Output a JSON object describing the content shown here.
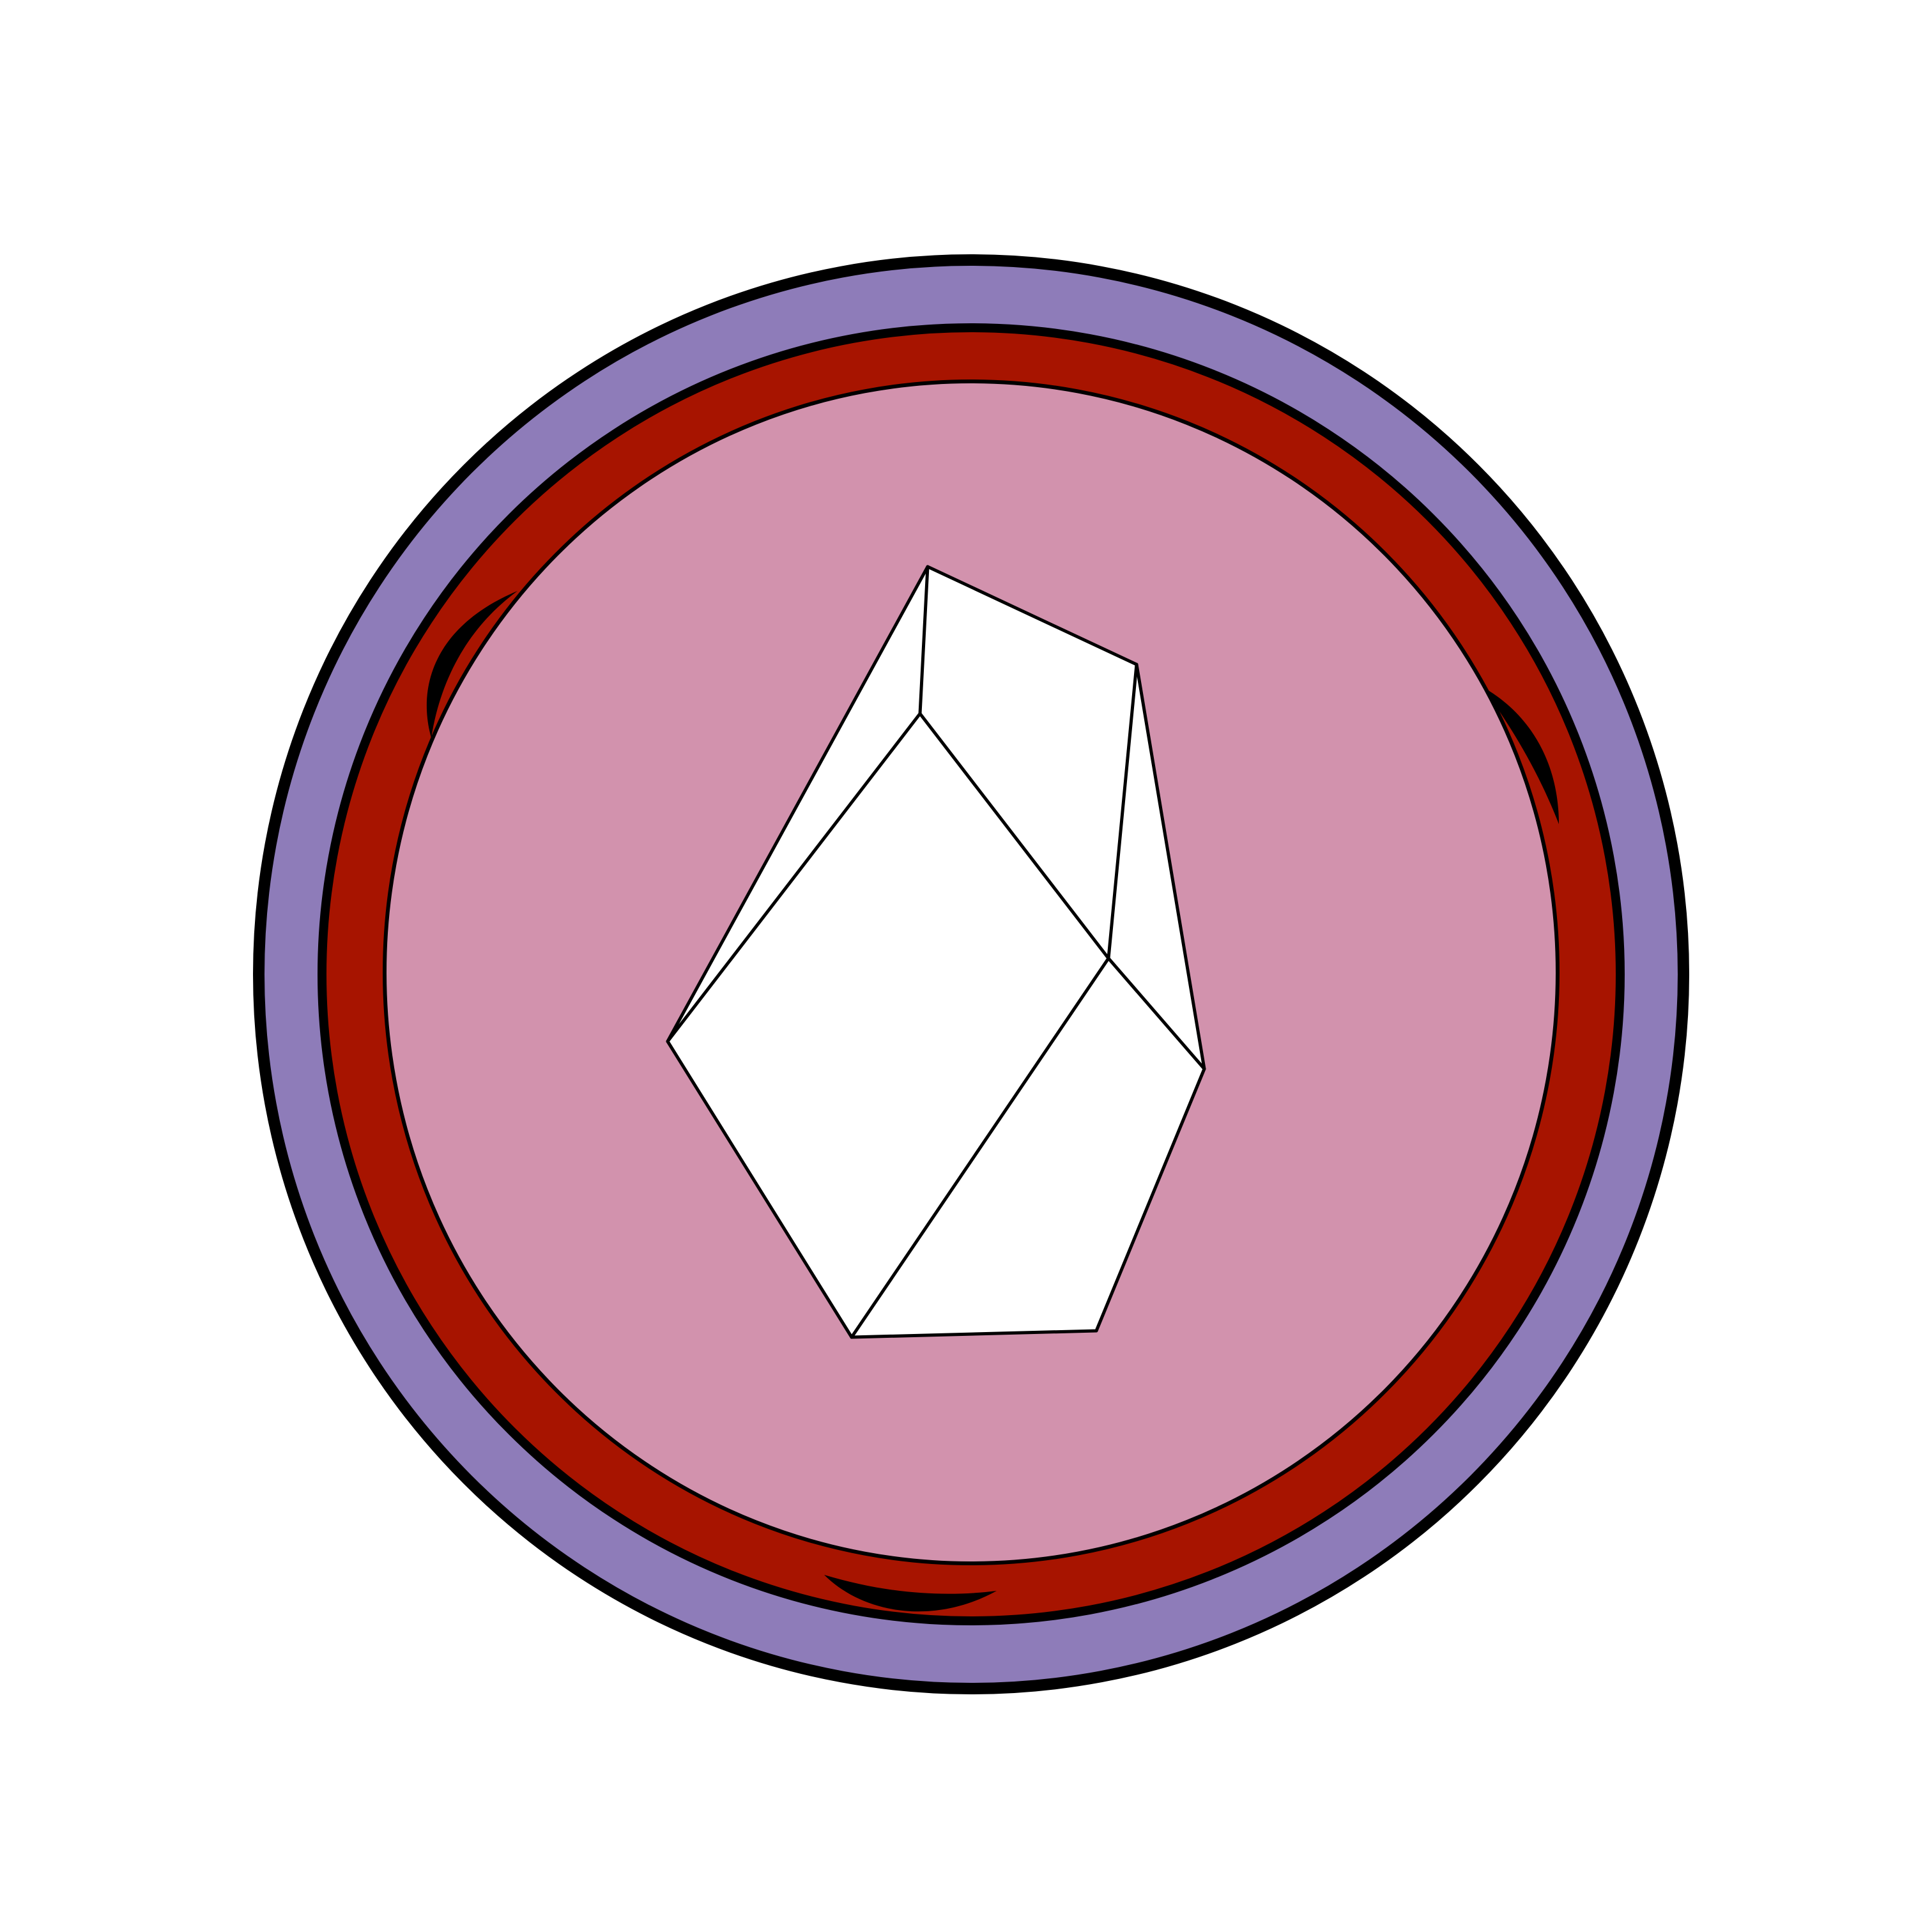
{
  "image": {
    "kind": "circular emblem with crystal",
    "colors": {
      "background": "#ffffff",
      "outline": "#000000",
      "outer_ring": "#8e7cb9",
      "middle_ring": "#a71400",
      "inner_disc": "#d292ad",
      "crystal_fill": "#ffffff",
      "crystal_stroke": "#000000"
    },
    "icons": [
      "crescent-icon",
      "crystal-icon"
    ]
  }
}
